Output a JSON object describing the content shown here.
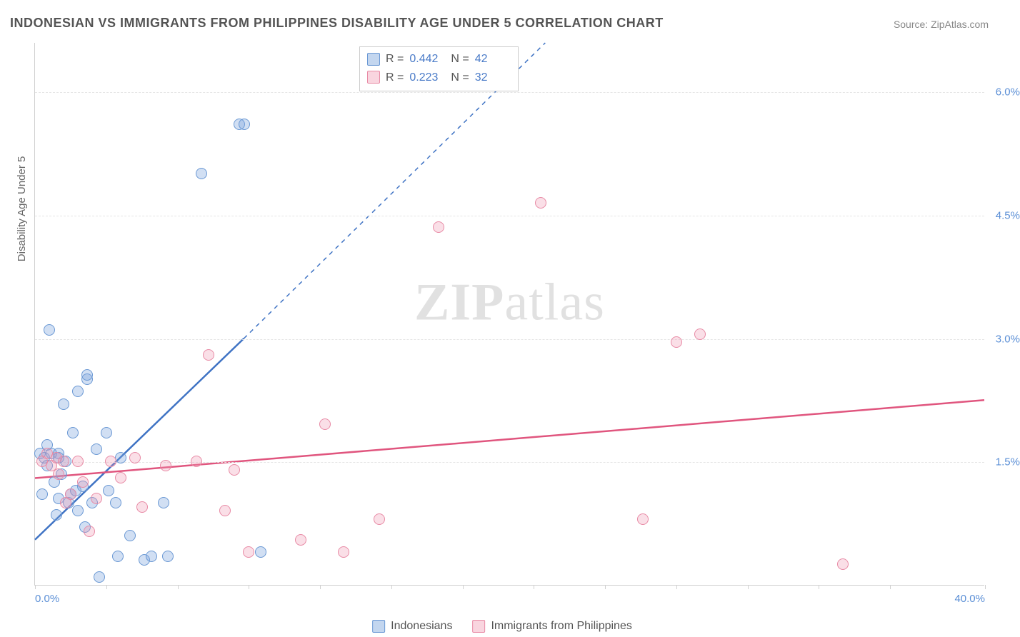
{
  "title": "INDONESIAN VS IMMIGRANTS FROM PHILIPPINES DISABILITY AGE UNDER 5 CORRELATION CHART",
  "source_prefix": "Source: ",
  "source_name": "ZipAtlas.com",
  "watermark_bold": "ZIP",
  "watermark_light": "atlas",
  "chart": {
    "type": "scatter",
    "y_axis_title": "Disability Age Under 5",
    "xlim": [
      0,
      40
    ],
    "ylim": [
      0,
      6.6
    ],
    "x_ticks": [
      0,
      3,
      6,
      9,
      12,
      15,
      18,
      21,
      24,
      27,
      30,
      33,
      36,
      40
    ],
    "x_tick_labels": {
      "0": "0.0%",
      "40": "40.0%"
    },
    "y_gridlines": [
      1.5,
      3.0,
      4.5,
      6.0
    ],
    "y_tick_labels": {
      "1.5": "1.5%",
      "3.0": "3.0%",
      "4.5": "4.5%",
      "6.0": "6.0%"
    },
    "background_color": "#ffffff",
    "grid_color": "#e5e5e5",
    "axis_color": "#d0d0d0",
    "label_color": "#5b8fd6",
    "series": [
      {
        "key": "a",
        "name": "Indonesians",
        "color_fill": "rgba(122,164,220,0.35)",
        "color_stroke": "#6a98d4",
        "trend_color": "#3f73c4",
        "r_value": "0.442",
        "n_value": "42",
        "trend": {
          "x1": 0,
          "y1": 0.55,
          "x2": 8.8,
          "y2": 3.0,
          "dash_to_x": 21.5,
          "dash_to_y": 6.6
        },
        "points": [
          [
            0.2,
            1.6
          ],
          [
            0.3,
            1.1
          ],
          [
            0.4,
            1.55
          ],
          [
            0.5,
            1.45
          ],
          [
            0.5,
            1.7
          ],
          [
            0.6,
            3.1
          ],
          [
            0.7,
            1.6
          ],
          [
            0.8,
            1.25
          ],
          [
            0.9,
            0.85
          ],
          [
            1.0,
            1.05
          ],
          [
            1.0,
            1.6
          ],
          [
            1.1,
            1.35
          ],
          [
            1.2,
            2.2
          ],
          [
            1.3,
            1.5
          ],
          [
            1.4,
            1.0
          ],
          [
            1.5,
            1.1
          ],
          [
            1.6,
            1.85
          ],
          [
            1.7,
            1.15
          ],
          [
            1.8,
            2.35
          ],
          [
            1.8,
            0.9
          ],
          [
            2.0,
            1.2
          ],
          [
            2.1,
            0.7
          ],
          [
            2.2,
            2.5
          ],
          [
            2.2,
            2.55
          ],
          [
            2.4,
            1.0
          ],
          [
            2.6,
            1.65
          ],
          [
            2.7,
            0.1
          ],
          [
            3.0,
            1.85
          ],
          [
            3.1,
            1.15
          ],
          [
            3.4,
            1.0
          ],
          [
            3.5,
            0.35
          ],
          [
            3.6,
            1.55
          ],
          [
            4.0,
            0.6
          ],
          [
            4.6,
            0.3
          ],
          [
            4.9,
            0.35
          ],
          [
            5.4,
            1.0
          ],
          [
            5.6,
            0.35
          ],
          [
            7.0,
            5.0
          ],
          [
            8.6,
            5.6
          ],
          [
            8.8,
            5.6
          ],
          [
            9.5,
            0.4
          ],
          [
            1.0,
            1.55
          ]
        ]
      },
      {
        "key": "b",
        "name": "Immigrants from Philippines",
        "color_fill": "rgba(240,150,175,0.3)",
        "color_stroke": "#e88aa5",
        "trend_color": "#e0557e",
        "r_value": "0.223",
        "n_value": "32",
        "trend": {
          "x1": 0,
          "y1": 1.3,
          "x2": 40,
          "y2": 2.25
        },
        "points": [
          [
            0.3,
            1.5
          ],
          [
            0.5,
            1.6
          ],
          [
            0.7,
            1.45
          ],
          [
            0.9,
            1.55
          ],
          [
            1.0,
            1.35
          ],
          [
            1.2,
            1.5
          ],
          [
            1.3,
            1.0
          ],
          [
            1.5,
            1.1
          ],
          [
            1.8,
            1.5
          ],
          [
            2.0,
            1.25
          ],
          [
            2.3,
            0.65
          ],
          [
            2.6,
            1.05
          ],
          [
            3.2,
            1.5
          ],
          [
            3.6,
            1.3
          ],
          [
            4.2,
            1.55
          ],
          [
            4.5,
            0.95
          ],
          [
            5.5,
            1.45
          ],
          [
            6.8,
            1.5
          ],
          [
            7.3,
            2.8
          ],
          [
            8.0,
            0.9
          ],
          [
            8.4,
            1.4
          ],
          [
            9.0,
            0.4
          ],
          [
            11.2,
            0.55
          ],
          [
            12.2,
            1.95
          ],
          [
            13.0,
            0.4
          ],
          [
            14.5,
            0.8
          ],
          [
            17.0,
            4.35
          ],
          [
            21.3,
            4.65
          ],
          [
            25.6,
            0.8
          ],
          [
            27.0,
            2.95
          ],
          [
            28.0,
            3.05
          ],
          [
            34.0,
            0.25
          ]
        ]
      }
    ]
  },
  "stats_labels": {
    "r": "R =",
    "n": "N ="
  }
}
